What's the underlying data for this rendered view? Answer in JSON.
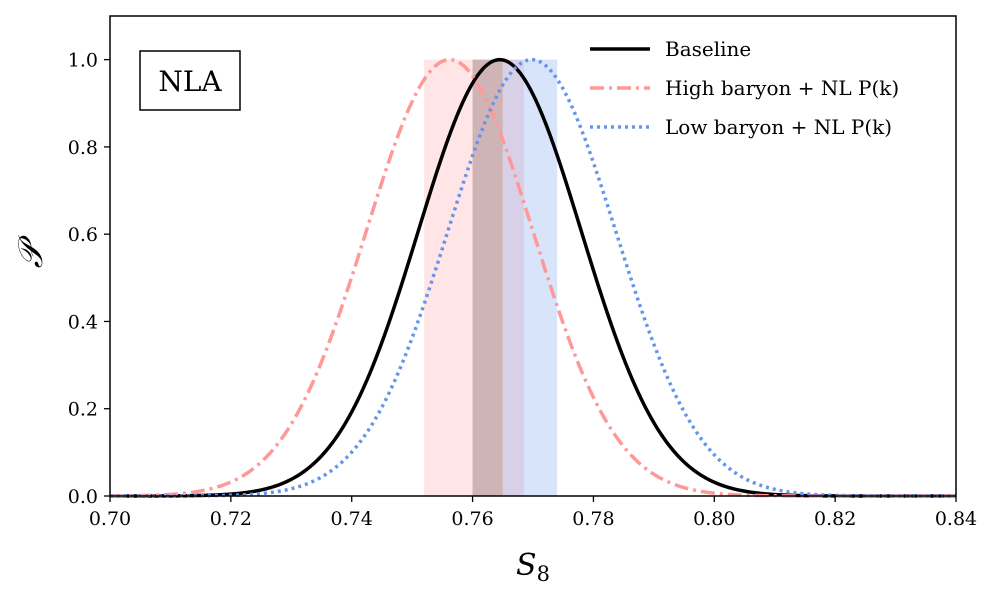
{
  "chart_data": {
    "type": "line",
    "title": "",
    "annotation": "NLA",
    "xlabel": "S8",
    "xlabel_main": "S",
    "xlabel_sub": "8",
    "ylabel": "𝒫",
    "xlim": [
      0.7,
      0.84
    ],
    "ylim": [
      0.0,
      1.1
    ],
    "x_ticks": [
      0.7,
      0.72,
      0.74,
      0.76,
      0.78,
      0.8,
      0.82,
      0.84
    ],
    "x_tick_labels": [
      "0.70",
      "0.72",
      "0.74",
      "0.76",
      "0.78",
      "0.80",
      "0.82",
      "0.84"
    ],
    "y_ticks": [
      0.0,
      0.2,
      0.4,
      0.6,
      0.8,
      1.0
    ],
    "y_tick_labels": [
      "0.0",
      "0.2",
      "0.4",
      "0.6",
      "0.8",
      "1.0"
    ],
    "legend_position": "top-right",
    "series": [
      {
        "name": "Baseline",
        "legend": "Baseline",
        "color": "#000000",
        "style": "solid",
        "mean": 0.7645,
        "sigma": 0.0135,
        "band": [
          0.76,
          0.765
        ]
      },
      {
        "name": "High baryon",
        "legend": "High baryon + NL P(k)",
        "color": "#ff9999",
        "style": "dashdot",
        "mean": 0.7562,
        "sigma": 0.0138,
        "band": [
          0.752,
          0.7685
        ]
      },
      {
        "name": "Low baryon",
        "legend": "Low baryon + NL P(k)",
        "color": "#6495ed",
        "style": "dotted",
        "mean": 0.7698,
        "sigma": 0.0139,
        "band": [
          0.765,
          0.774
        ]
      }
    ]
  }
}
